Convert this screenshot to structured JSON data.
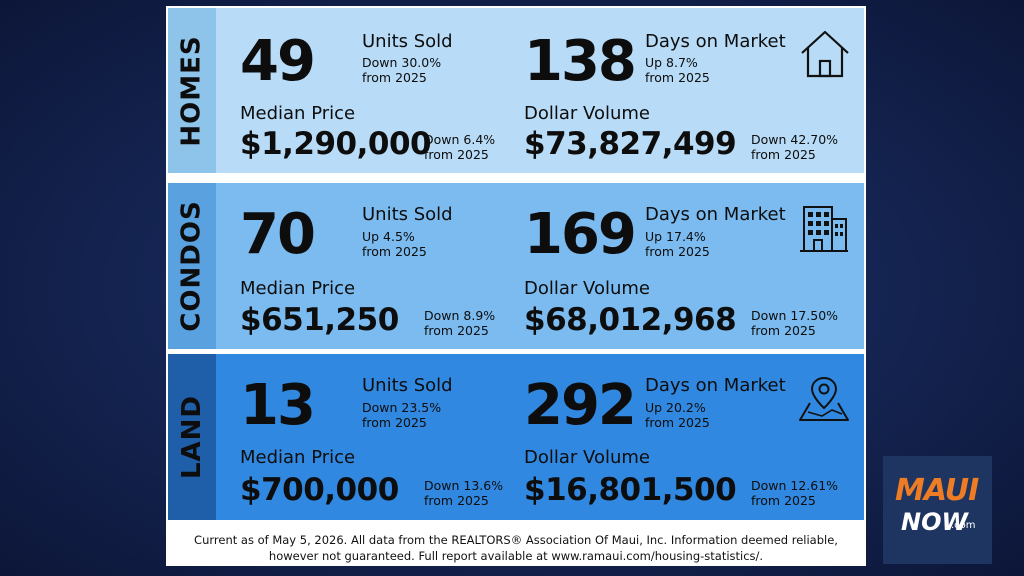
{
  "sections": [
    {
      "name": "HOMES",
      "units_sold": "49",
      "units_label": "Units Sold",
      "units_change": "Down 30.0%",
      "units_from": "from 2025",
      "days": "138",
      "days_label": "Days on Market",
      "days_change": "Up 8.7%",
      "days_from": "from 2025",
      "median_label": "Median Price",
      "median_price": "$1,290,000",
      "median_change": "Down 6.4%",
      "median_from": "from 2025",
      "volume_label": "Dollar Volume",
      "volume": "$73,827,499",
      "volume_change": "Down 42.70%",
      "volume_from": "from 2025",
      "icon": "house-icon"
    },
    {
      "name": "CONDOS",
      "units_sold": "70",
      "units_label": "Units Sold",
      "units_change": "Up 4.5%",
      "units_from": "from 2025",
      "days": "169",
      "days_label": "Days on Market",
      "days_change": "Up 17.4%",
      "days_from": "from 2025",
      "median_label": "Median Price",
      "median_price": "$651,250",
      "median_change": "Down 8.9%",
      "median_from": "from 2025",
      "volume_label": "Dollar Volume",
      "volume": "$68,012,968",
      "volume_change": "Down 17.50%",
      "volume_from": "from 2025",
      "icon": "condo-building-icon"
    },
    {
      "name": "LAND",
      "units_sold": "13",
      "units_label": "Units Sold",
      "units_change": "Down 23.5%",
      "units_from": "from 2025",
      "days": "292",
      "days_label": "Days on Market",
      "days_change": "Up 20.2%",
      "days_from": "from 2025",
      "median_label": "Median Price",
      "median_price": "$700,000",
      "median_change": "Down 13.6%",
      "median_from": "from 2025",
      "volume_label": "Dollar Volume",
      "volume": "$16,801,500",
      "volume_change": "Down 12.61%",
      "volume_from": "from 2025",
      "icon": "map-pin-icon"
    }
  ],
  "footer": {
    "line1": "Current as of May 5, 2026. All data from the REALTORS® Association Of Maui, Inc. Information deemed reliable,",
    "line2": "however not guaranteed. Full report available at www.ramaui.com/housing-statistics/."
  },
  "logo": {
    "maui": "MAUI",
    "now": "NOW",
    "com": ".com"
  },
  "colors": {
    "background": "#142350",
    "homes_panel": "#b8dcf7",
    "condos_panel": "#7bbbf0",
    "land_panel": "#3188e0",
    "logo_orange": "#ee7c24"
  }
}
